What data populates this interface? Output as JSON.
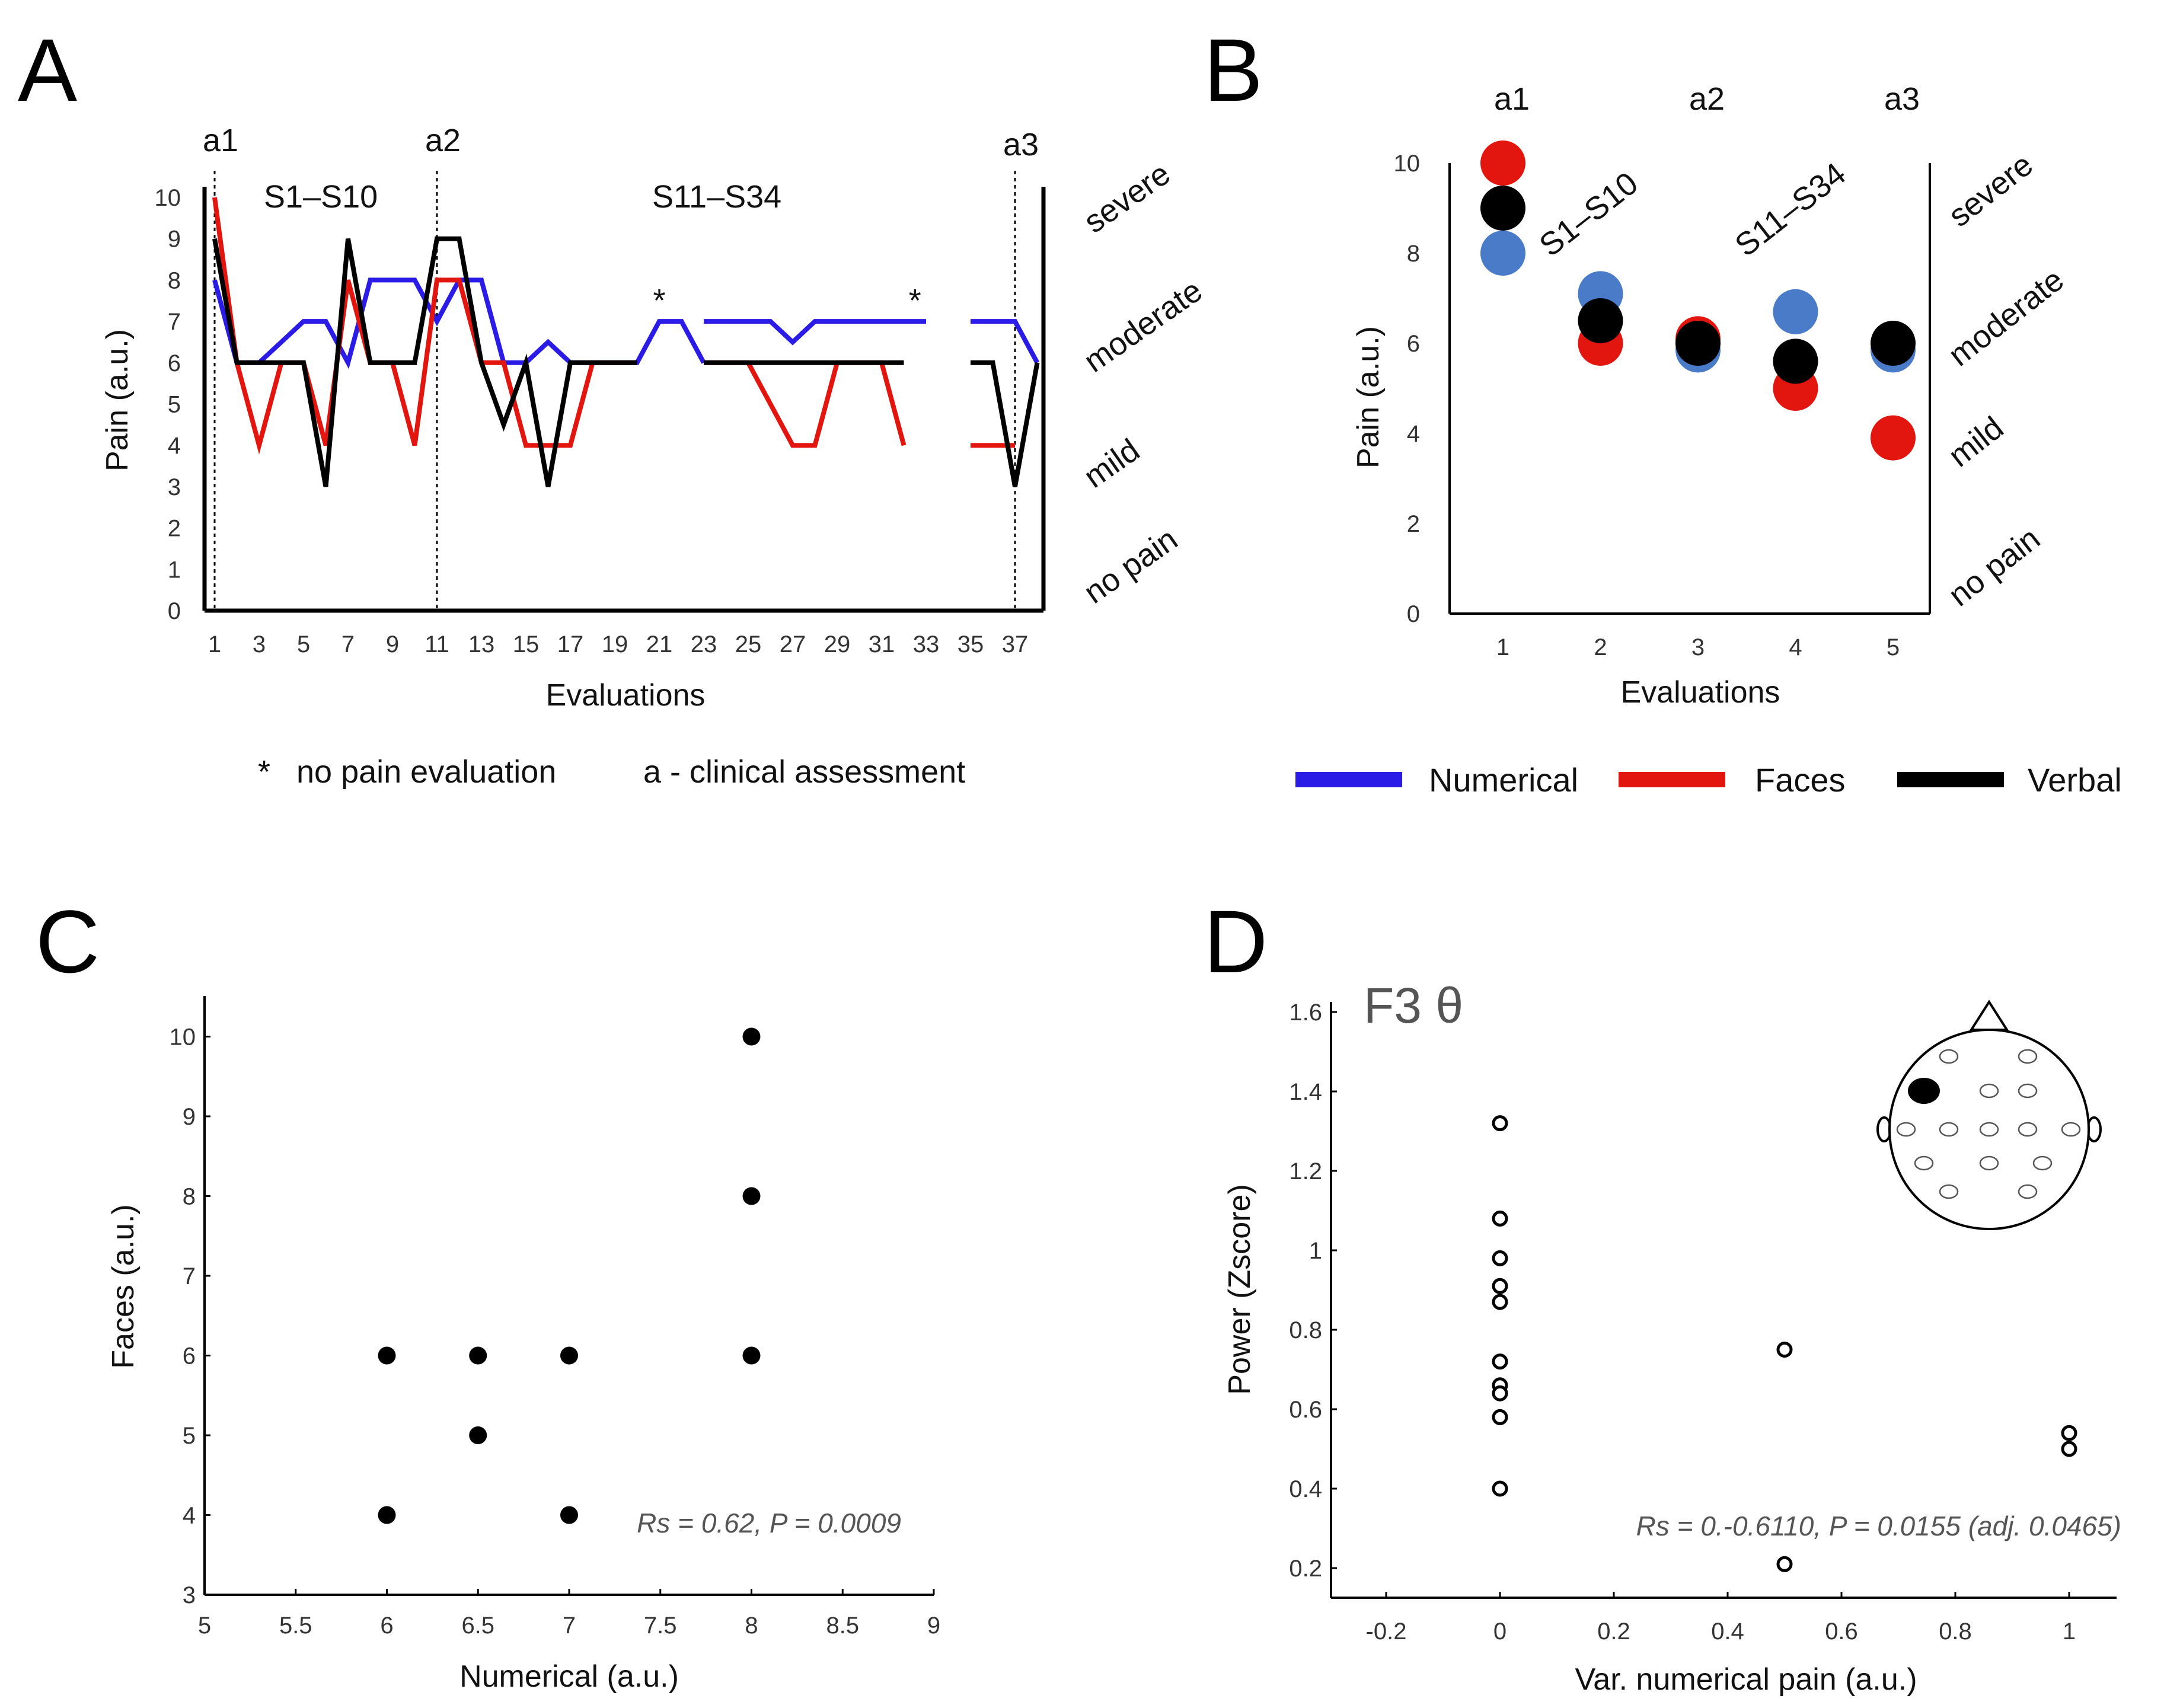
{
  "panel_labels": [
    "A",
    "B",
    "C",
    "D"
  ],
  "colors": {
    "numerical": "#2b1be6",
    "faces": "#e3150f",
    "verbal": "#000000",
    "dot_blue": "#4a7bc8",
    "dot_red": "#e3150f",
    "dot_black": "#000000"
  },
  "chart_data": [
    {
      "id": "A",
      "type": "line",
      "xlabel": "Evaluations",
      "ylabel": "Pain  (a.u.)",
      "xlim": [
        1,
        37
      ],
      "ylim": [
        0,
        10
      ],
      "x_ticks": [
        1,
        3,
        5,
        7,
        9,
        11,
        13,
        15,
        17,
        19,
        21,
        23,
        25,
        27,
        29,
        31,
        33,
        35,
        37
      ],
      "y_ticks": [
        0,
        1,
        2,
        3,
        4,
        5,
        6,
        7,
        8,
        9,
        10
      ],
      "right_category_labels": [
        "severe",
        "moderate",
        "mild",
        "no pain"
      ],
      "assessment_markers": [
        {
          "label": "a1",
          "x": 1
        },
        {
          "label": "a2",
          "x": 11
        },
        {
          "label": "a3",
          "x": 37
        }
      ],
      "section_labels": [
        "S1–S10",
        "S11–S34"
      ],
      "no_eval_markers": [
        {
          "label": "*",
          "x": 21
        },
        {
          "label": "*",
          "x": 32.5
        }
      ],
      "series": [
        {
          "name": "Numerical",
          "color_key": "numerical",
          "segments": [
            [
              [
                1,
                8
              ],
              [
                2,
                6
              ],
              [
                3,
                6
              ],
              [
                4,
                6.5
              ],
              [
                5,
                7
              ],
              [
                6,
                7
              ],
              [
                7,
                6
              ],
              [
                8,
                8
              ],
              [
                9,
                8
              ],
              [
                10,
                8
              ],
              [
                11,
                7
              ],
              [
                12,
                8
              ],
              [
                13,
                8
              ],
              [
                14,
                6
              ],
              [
                15,
                6
              ],
              [
                16,
                6.5
              ],
              [
                17,
                6
              ],
              [
                18,
                6
              ],
              [
                19,
                6
              ],
              [
                20,
                6
              ],
              [
                21,
                7
              ],
              [
                22,
                7
              ],
              [
                23,
                6
              ]
            ],
            [
              [
                23,
                7
              ],
              [
                24,
                7
              ],
              [
                25,
                7
              ],
              [
                26,
                7
              ],
              [
                27,
                6.5
              ],
              [
                28,
                7
              ],
              [
                29,
                7
              ],
              [
                30,
                7
              ],
              [
                31,
                7
              ],
              [
                32,
                7
              ],
              [
                33,
                7
              ]
            ],
            [
              [
                35,
                7
              ],
              [
                36,
                7
              ],
              [
                37,
                7
              ],
              [
                38,
                6
              ]
            ]
          ]
        },
        {
          "name": "Faces",
          "color_key": "faces",
          "segments": [
            [
              [
                1,
                10
              ],
              [
                2,
                6
              ],
              [
                3,
                4
              ],
              [
                4,
                6
              ],
              [
                5,
                6
              ],
              [
                6,
                4
              ],
              [
                7,
                8
              ],
              [
                8,
                6
              ],
              [
                9,
                6
              ],
              [
                10,
                4
              ],
              [
                11,
                8
              ],
              [
                12,
                8
              ],
              [
                13,
                6
              ],
              [
                14,
                6
              ],
              [
                15,
                4
              ],
              [
                16,
                4
              ],
              [
                17,
                4
              ],
              [
                18,
                6
              ],
              [
                19,
                6
              ],
              [
                20,
                6
              ]
            ],
            [
              [
                23,
                6
              ],
              [
                24,
                6
              ],
              [
                25,
                6
              ],
              [
                26,
                5
              ],
              [
                27,
                4
              ],
              [
                28,
                4
              ],
              [
                29,
                6
              ],
              [
                30,
                6
              ],
              [
                31,
                6
              ],
              [
                32,
                4
              ]
            ],
            [
              [
                35,
                4
              ],
              [
                36,
                4
              ],
              [
                37,
                4
              ]
            ]
          ]
        },
        {
          "name": "Verbal",
          "color_key": "verbal",
          "segments": [
            [
              [
                1,
                9
              ],
              [
                2,
                6
              ],
              [
                3,
                6
              ],
              [
                4,
                6
              ],
              [
                5,
                6
              ],
              [
                6,
                3
              ],
              [
                7,
                9
              ],
              [
                8,
                6
              ],
              [
                9,
                6
              ],
              [
                10,
                6
              ],
              [
                11,
                9
              ],
              [
                12,
                9
              ],
              [
                13,
                6
              ],
              [
                14,
                4.5
              ],
              [
                15,
                6
              ],
              [
                16,
                3
              ],
              [
                17,
                6
              ],
              [
                18,
                6
              ],
              [
                19,
                6
              ],
              [
                20,
                6
              ]
            ],
            [
              [
                23,
                6
              ],
              [
                24,
                6
              ],
              [
                25,
                6
              ],
              [
                26,
                6
              ],
              [
                27,
                6
              ],
              [
                28,
                6
              ],
              [
                29,
                6
              ],
              [
                30,
                6
              ],
              [
                31,
                6
              ],
              [
                32,
                6
              ]
            ],
            [
              [
                35,
                6
              ],
              [
                36,
                6
              ],
              [
                37,
                3
              ],
              [
                38,
                6
              ]
            ]
          ]
        }
      ],
      "footnote_star": "*",
      "footnote_star_text": "no pain evaluation",
      "footnote_a": "a - clinical assessment"
    },
    {
      "id": "B",
      "type": "scatter",
      "xlabel": "Evaluations",
      "ylabel": "Pain (a.u.)",
      "xlim": [
        0.5,
        5.5
      ],
      "ylim": [
        0,
        10
      ],
      "x_ticks": [
        1,
        2,
        3,
        4,
        5
      ],
      "y_ticks": [
        0,
        2,
        4,
        6,
        8,
        10
      ],
      "right_category_labels": [
        "severe",
        "moderate",
        "mild",
        "no pain"
      ],
      "top_labels": [
        {
          "label": "a1",
          "x": 1
        },
        {
          "label": "a2",
          "x": 3
        },
        {
          "label": "a3",
          "x": 5
        }
      ],
      "section_labels": [
        "S1–S10",
        "S11–S34"
      ],
      "series": [
        {
          "name": "Numerical",
          "color_key": "dot_blue",
          "x": [
            1,
            2,
            3,
            4,
            5
          ],
          "y": [
            8,
            7.1,
            5.85,
            6.7,
            5.85
          ]
        },
        {
          "name": "Faces",
          "color_key": "dot_red",
          "x": [
            1,
            2,
            3,
            4,
            5
          ],
          "y": [
            10,
            6,
            6.1,
            5,
            3.9
          ]
        },
        {
          "name": "Verbal",
          "color_key": "dot_black",
          "x": [
            1,
            2,
            3,
            4,
            5
          ],
          "y": [
            9,
            6.5,
            6,
            5.6,
            6
          ]
        }
      ],
      "legend": [
        "Numerical",
        "Faces",
        "Verbal"
      ]
    },
    {
      "id": "C",
      "type": "scatter",
      "xlabel": "Numerical (a.u.)",
      "ylabel": "Faces (a.u.)",
      "xlim": [
        5,
        9
      ],
      "ylim": [
        3,
        10.5
      ],
      "x_ticks": [
        "5",
        "5.5",
        "6",
        "6.5",
        "7",
        "7.5",
        "8",
        "8.5",
        "9"
      ],
      "y_ticks": [
        "3",
        "4",
        "5",
        "6",
        "7",
        "8",
        "9",
        "10"
      ],
      "points": [
        [
          6,
          6
        ],
        [
          6,
          4
        ],
        [
          6.5,
          6
        ],
        [
          6.5,
          5
        ],
        [
          7,
          6
        ],
        [
          7,
          4
        ],
        [
          8,
          10
        ],
        [
          8,
          8
        ],
        [
          8,
          6
        ]
      ],
      "annotation": "Rs = 0.62, P = 0.0009"
    },
    {
      "id": "D",
      "type": "scatter",
      "title": "F3 θ",
      "xlabel": "Var. numerical pain (a.u.)",
      "ylabel": "Power (Zscore)",
      "xlim": [
        -0.3,
        1.1
      ],
      "ylim": [
        0.1,
        1.6
      ],
      "x_ticks": [
        "-0.2",
        "0",
        "0.2",
        "0.4",
        "0.6",
        "0.8",
        "1"
      ],
      "y_ticks": [
        "0.2",
        "0.4",
        "0.6",
        "0.8",
        "1",
        "1.2",
        "1.4",
        "1.6"
      ],
      "points": [
        [
          0,
          1.32
        ],
        [
          0,
          1.08
        ],
        [
          0,
          0.98
        ],
        [
          0,
          0.91
        ],
        [
          0,
          0.87
        ],
        [
          0,
          0.72
        ],
        [
          0,
          0.66
        ],
        [
          0,
          0.64
        ],
        [
          0,
          0.58
        ],
        [
          0,
          0.4
        ],
        [
          0.5,
          0.75
        ],
        [
          0.5,
          0.21
        ],
        [
          1,
          0.54
        ],
        [
          1,
          0.5
        ]
      ],
      "annotation": "Rs = 0.-0.6110, P = 0.0155 (adj. 0.0465)"
    }
  ]
}
